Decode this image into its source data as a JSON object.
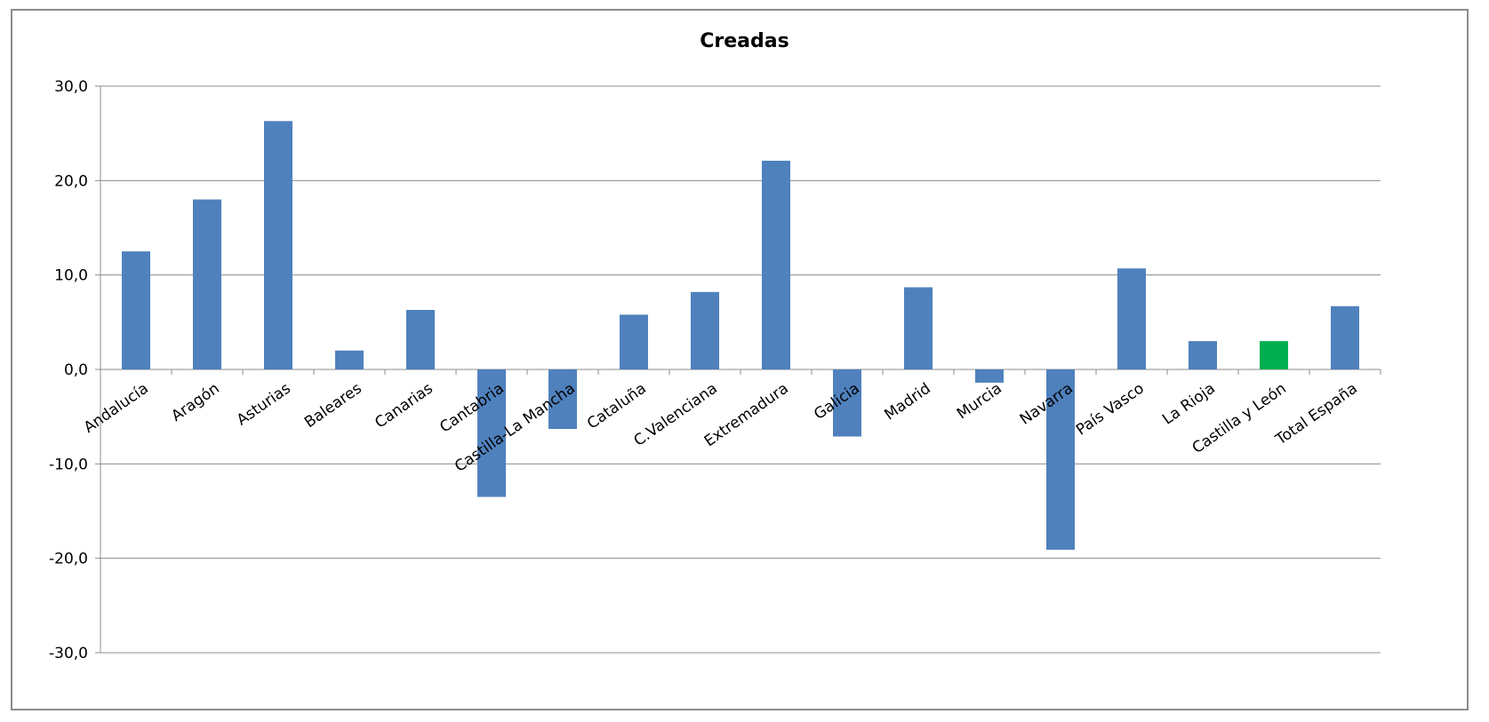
{
  "chart_data": {
    "type": "bar",
    "title": "Creadas",
    "xlabel": "",
    "ylabel": "",
    "ylim": [
      -30,
      30
    ],
    "yticks": [
      "30,0",
      "20,0",
      "10,0",
      "0,0",
      "-10,0",
      "-20,0",
      "-30,0"
    ],
    "grid": true,
    "categories": [
      "Andalucía",
      "Aragón",
      "Asturias",
      "Baleares",
      "Canarias",
      "Cantabria",
      "Castilla-La Mancha",
      "Cataluña",
      "C.Valenciana",
      "Extremadura",
      "Galicia",
      "Madrid",
      "Murcia",
      "Navarra",
      "País Vasco",
      "La Rioja",
      "Castilla y León",
      "Total España"
    ],
    "values": [
      12.5,
      18.0,
      26.3,
      2.0,
      6.3,
      -13.5,
      -6.3,
      5.8,
      8.2,
      22.1,
      -7.1,
      8.7,
      -1.4,
      -19.1,
      10.7,
      3.0,
      3.0,
      6.7
    ],
    "colors": {
      "default": "#4f81bd",
      "highlight": "#00b050",
      "highlight_category": "Castilla y León",
      "grid": "#8c8c8c"
    }
  }
}
